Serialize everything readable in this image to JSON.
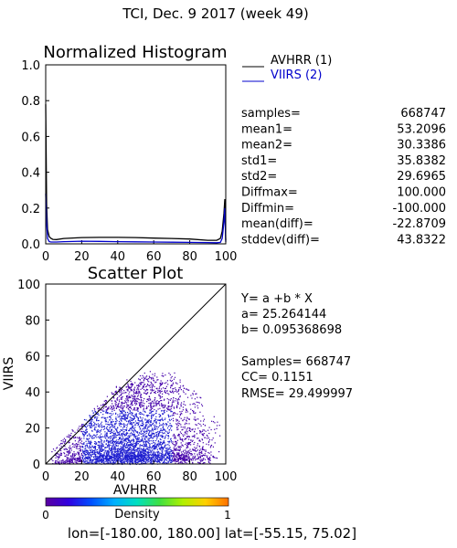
{
  "header": {
    "title": "TCI,  Dec. 9 2017 (week 49)"
  },
  "footer": {
    "region": "lon=[-180.00, 180.00] lat=[-55.15, 75.02]"
  },
  "colors": {
    "avhrr": "#000000",
    "viirs": "#0000cc",
    "axis": "#000000"
  },
  "stats": {
    "rows": [
      {
        "label": "samples=",
        "value": "668747"
      },
      {
        "label": "mean1=",
        "value": "53.2096"
      },
      {
        "label": "mean2=",
        "value": "30.3386"
      },
      {
        "label": "std1=",
        "value": "35.8382"
      },
      {
        "label": "std2=",
        "value": "29.6965"
      },
      {
        "label": "Diffmax=",
        "value": "100.000"
      },
      {
        "label": "Diffmin=",
        "value": "-100.000"
      },
      {
        "label": "mean(diff)=",
        "value": "-22.8709"
      },
      {
        "label": "stddev(diff)=",
        "value": "43.8322"
      }
    ]
  },
  "regression": {
    "equation": "Y= a +b * X",
    "a": "a= 25.264144",
    "b": "b= 0.095368698",
    "samples": "Samples= 668747",
    "cc": "CC=  0.1151",
    "rmse": "RMSE= 29.499997"
  },
  "colorbar": {
    "label": "Density",
    "min_label": "0",
    "max_label": "1",
    "colors": [
      "#5a00a0",
      "#3000e0",
      "#0050ff",
      "#00b0ff",
      "#00e0c0",
      "#40e040",
      "#b0f000",
      "#ffd000",
      "#ff7000"
    ]
  },
  "chart_data": [
    {
      "type": "line",
      "title": "Normalized Histogram",
      "xlim": [
        0,
        100
      ],
      "ylim": [
        0,
        1.0
      ],
      "x_ticks": [
        "0",
        "20",
        "40",
        "60",
        "80",
        "100"
      ],
      "y_ticks": [
        "0.0",
        "0.2",
        "0.4",
        "0.6",
        "0.8",
        "1.0"
      ],
      "legend_position": "right-outside",
      "series": [
        {
          "name": "AVHRR (1)",
          "color": "#000000",
          "x": [
            0,
            0.5,
            1,
            2,
            3,
            4,
            6,
            10,
            20,
            30,
            40,
            50,
            60,
            70,
            80,
            90,
            95,
            97,
            98,
            99,
            99.5,
            100
          ],
          "y": [
            0.78,
            0.22,
            0.08,
            0.04,
            0.03,
            0.025,
            0.024,
            0.03,
            0.035,
            0.036,
            0.036,
            0.035,
            0.032,
            0.03,
            0.027,
            0.02,
            0.02,
            0.03,
            0.07,
            0.17,
            0.25,
            0.02
          ]
        },
        {
          "name": "VIIRS (2)",
          "color": "#0000cc",
          "x": [
            0,
            0.5,
            1,
            2,
            3,
            4,
            6,
            10,
            20,
            30,
            40,
            50,
            60,
            70,
            80,
            90,
            95,
            97,
            98,
            99,
            99.5,
            100
          ],
          "y": [
            0.28,
            0.12,
            0.03,
            0.012,
            0.01,
            0.01,
            0.01,
            0.012,
            0.015,
            0.014,
            0.012,
            0.011,
            0.01,
            0.009,
            0.008,
            0.007,
            0.006,
            0.008,
            0.03,
            0.12,
            0.2,
            0.01
          ]
        }
      ]
    },
    {
      "type": "scatter",
      "title": "Scatter Plot",
      "xlabel": "AVHRR",
      "ylabel": "VIIRS",
      "xlim": [
        0,
        100
      ],
      "ylim": [
        0,
        100
      ],
      "x_ticks": [
        "0",
        "20",
        "40",
        "60",
        "80",
        "100"
      ],
      "y_ticks": [
        "0",
        "20",
        "40",
        "60",
        "80",
        "100"
      ],
      "reference_line": {
        "x": [
          0,
          100
        ],
        "y": [
          0,
          100
        ]
      },
      "cloud": {
        "x_range": [
          2,
          97
        ],
        "y_max_at_x": [
          [
            0,
            5
          ],
          [
            10,
            15
          ],
          [
            20,
            25
          ],
          [
            30,
            35
          ],
          [
            40,
            45
          ],
          [
            50,
            50
          ],
          [
            60,
            53
          ],
          [
            70,
            52
          ],
          [
            80,
            45
          ],
          [
            90,
            35
          ],
          [
            97,
            25
          ]
        ],
        "dense_region": {
          "x": [
            20,
            70
          ],
          "y": [
            0,
            30
          ]
        }
      }
    }
  ]
}
